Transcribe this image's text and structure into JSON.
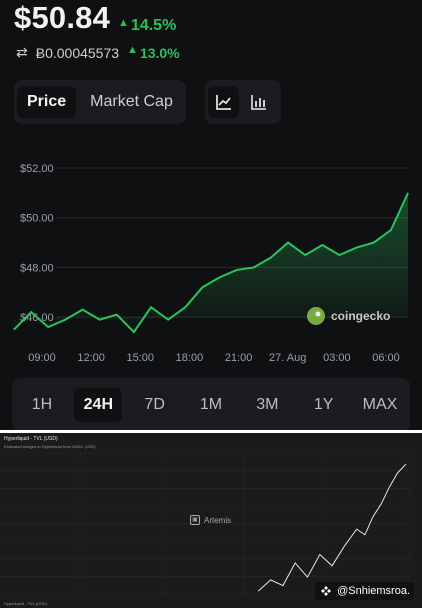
{
  "header": {
    "price": "$50.84",
    "change": "14.5%",
    "btc_value": "Ƀ0.00045573",
    "btc_change": "13.0%",
    "toggle_price": "Price",
    "toggle_market_cap": "Market Cap"
  },
  "colors": {
    "positive": "#29c15c",
    "chart_line": "#2bc35f",
    "background": "#0f1012",
    "panel": "#1a1c1f"
  },
  "icons": {
    "swap": "swap-icon",
    "line_chart": "line-chart-icon",
    "bar_chart": "bar-chart-icon",
    "coingecko_logo": "coingecko-logo-icon",
    "artemis_logo": "artemis-logo-icon",
    "binance_logo": "binance-logo-icon"
  },
  "chart": {
    "watermark": "coingecko",
    "yticks": [
      "$52.00",
      "$50.00",
      "$48.00",
      "$46.00"
    ],
    "xticks": [
      "09:00",
      "12:00",
      "15:00",
      "18:00",
      "21:00",
      "27. Aug",
      "03:00",
      "06:00"
    ]
  },
  "ranges": [
    {
      "label": "1H",
      "active": false
    },
    {
      "label": "24H",
      "active": true
    },
    {
      "label": "7D",
      "active": false
    },
    {
      "label": "1M",
      "active": false
    },
    {
      "label": "3M",
      "active": false
    },
    {
      "label": "1Y",
      "active": false
    },
    {
      "label": "MAX",
      "active": false
    }
  ],
  "artemis": {
    "title": "Hyperliquid - TVL (USD)",
    "subtitle": "Estimated bridged to Hyperliquid from USDC (USD)",
    "watermark": "Artemis",
    "legend": "Hyperliquid - TVL (USD)",
    "source_overlay": "@Snhiemsroa."
  },
  "chart_data": [
    {
      "type": "area",
      "title": "",
      "xlabel": "",
      "ylabel": "",
      "x": [
        "08:00",
        "09:00",
        "10:00",
        "11:00",
        "12:00",
        "13:00",
        "14:00",
        "15:00",
        "16:00",
        "17:00",
        "18:00",
        "19:00",
        "20:00",
        "21:00",
        "22:00",
        "23:00",
        "27. Aug",
        "01:00",
        "02:00",
        "03:00",
        "04:00",
        "05:00",
        "06:00",
        "07:00"
      ],
      "y": [
        45.5,
        46.2,
        45.6,
        45.9,
        46.3,
        45.9,
        46.1,
        45.4,
        46.4,
        45.9,
        46.4,
        47.2,
        47.6,
        47.9,
        48.0,
        48.4,
        49.0,
        48.5,
        48.9,
        48.5,
        48.8,
        49.0,
        49.5,
        51.0
      ],
      "ylim": [
        45.0,
        52.0
      ],
      "ticks": [
        "$52.00",
        "$50.00",
        "$48.00",
        "$46.00"
      ],
      "watermark": "coingecko"
    },
    {
      "type": "line",
      "title": "Hyperliquid - TVL (USD)",
      "subtitle": "Estimated bridged to Hyperliquid from USDC (USD)",
      "xlabel": "",
      "ylabel": "",
      "series": [
        {
          "name": "Hyperliquid - TVL (USD)",
          "values": [
            0.02,
            0.1,
            0.06,
            0.22,
            0.12,
            0.28,
            0.2,
            0.34,
            0.46,
            0.42,
            0.55,
            0.64,
            0.76,
            0.86,
            0.92
          ]
        }
      ],
      "x_positions": [
        0.63,
        0.66,
        0.69,
        0.72,
        0.75,
        0.78,
        0.81,
        0.84,
        0.87,
        0.89,
        0.91,
        0.93,
        0.95,
        0.97,
        0.99
      ],
      "ylim": [
        0,
        1
      ],
      "grid": true
    }
  ]
}
